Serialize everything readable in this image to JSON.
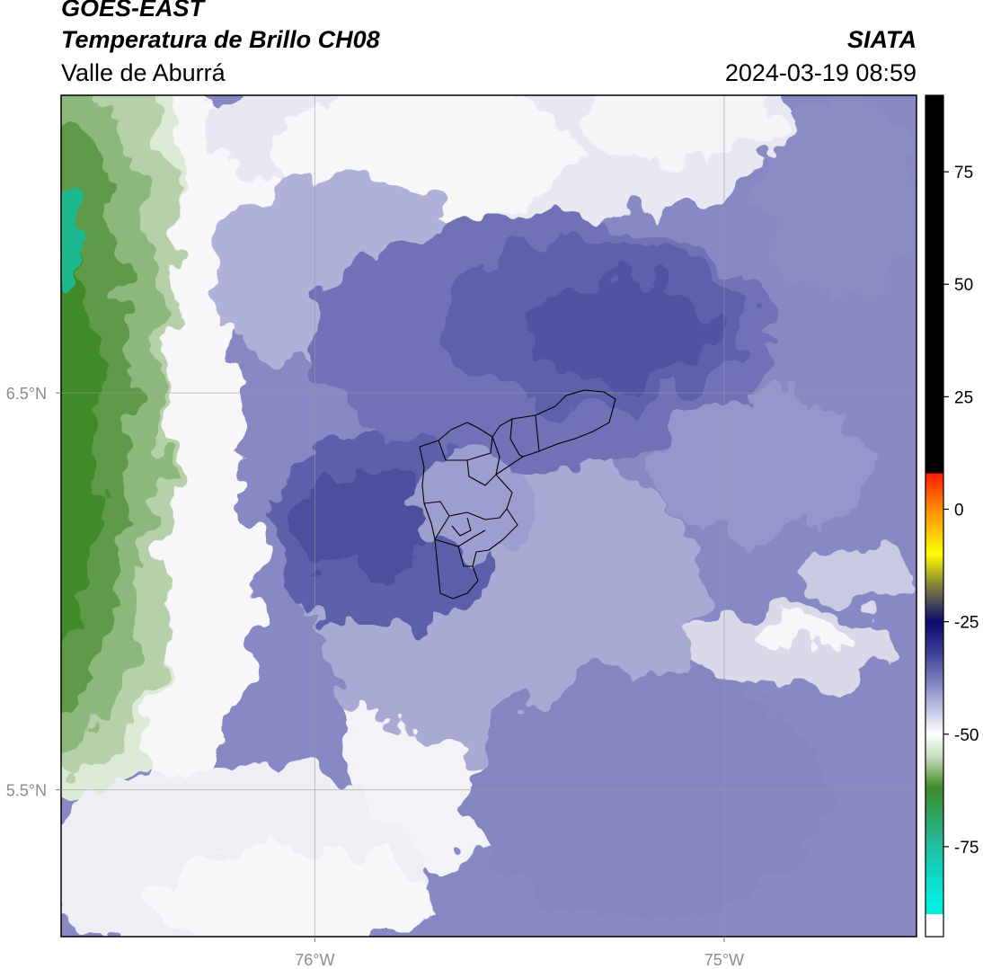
{
  "header": {
    "satellite": "GOES-EAST",
    "product": "Temperatura de Brillo CH08",
    "region": "Valle de Aburrá",
    "organization": "SIATA",
    "timestamp": "2024-03-19 08:59"
  },
  "map": {
    "lon_range": [
      -76.62,
      -74.53
    ],
    "lat_range": [
      5.13,
      7.25
    ],
    "lon_ticks": [
      {
        "value": -76.0,
        "label": "76°W"
      },
      {
        "value": -75.0,
        "label": "75°W"
      }
    ],
    "lat_ticks": [
      {
        "value": 6.5,
        "label": "6.5°N"
      },
      {
        "value": 5.5,
        "label": "5.5°N"
      }
    ],
    "gridlines": true,
    "overlay": "Valle de Aburrá municipal boundaries"
  },
  "colorbar": {
    "range": [
      -95,
      92
    ],
    "ticks": [
      {
        "value": 75,
        "label": "75"
      },
      {
        "value": 50,
        "label": "50"
      },
      {
        "value": 25,
        "label": "25"
      },
      {
        "value": 0,
        "label": "0"
      },
      {
        "value": -25,
        "label": "-25"
      },
      {
        "value": -50,
        "label": "-50"
      },
      {
        "value": -75,
        "label": "-75"
      }
    ],
    "colors": {
      "warm_top": "#000000",
      "red": "#ff1a00",
      "orange": "#ff8c00",
      "yellow": "#ffff00",
      "olive": "#7f7f3a",
      "dark_navy": "#0b0b6e",
      "indigo": "#3a3f96",
      "lavender": "#a7a9d4",
      "white": "#ffffff",
      "pale_green": "#c7dcbf",
      "green": "#3f8a2a",
      "teal": "#20bfa0",
      "cyan": "#00f0e6"
    }
  }
}
